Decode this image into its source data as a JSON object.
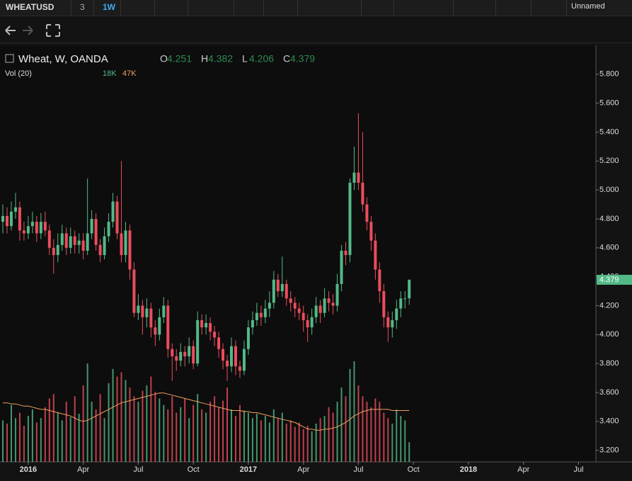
{
  "toolbar": {
    "symbol": "WHEATUSD",
    "compare": "3",
    "interval": "1W",
    "layout": "Unnamed"
  },
  "chart_data": {
    "type": "candlestick",
    "title": "Wheat, W, OANDA",
    "legend": {
      "labels": [
        "O",
        "H",
        "L",
        "C"
      ],
      "values": [
        4.251,
        4.382,
        4.206,
        4.379
      ]
    },
    "up_color": "#53b987",
    "down_color": "#eb4d5c",
    "open": [
      4.78,
      4.82,
      4.75,
      4.85,
      4.88,
      4.72,
      4.7,
      4.75,
      4.78,
      4.7,
      4.78,
      4.72,
      4.6,
      4.55,
      4.62,
      4.7,
      4.6,
      4.68,
      4.62,
      4.65,
      4.58,
      4.7,
      4.8,
      4.62,
      4.55,
      4.68,
      4.78,
      4.92,
      4.7,
      4.55,
      4.72,
      4.45,
      4.15,
      4.2,
      4.12,
      4.18,
      4.05,
      4.0,
      4.12,
      4.2,
      3.9,
      3.85,
      3.82,
      3.88,
      3.85,
      3.92,
      3.8,
      4.1,
      4.05,
      4.08,
      4.02,
      3.98,
      3.9,
      3.82,
      3.78,
      3.92,
      3.78,
      3.75,
      3.9,
      4.05,
      4.1,
      4.15,
      4.12,
      4.18,
      4.22,
      4.38,
      4.3,
      4.35,
      4.25,
      4.22,
      4.18,
      4.15,
      4.1,
      4.05,
      4.12,
      4.2,
      4.15,
      4.25,
      4.22,
      4.2,
      4.35,
      4.58,
      4.55,
      5.05,
      5.12,
      5.05,
      4.9,
      4.78,
      4.65,
      4.45,
      4.3,
      4.12,
      4.05,
      4.1,
      4.18,
      4.25,
      4.251
    ],
    "high": [
      4.9,
      4.88,
      4.92,
      4.98,
      4.92,
      4.78,
      4.82,
      4.85,
      4.82,
      4.84,
      4.85,
      4.76,
      4.66,
      4.7,
      4.76,
      4.74,
      4.74,
      4.72,
      4.7,
      4.7,
      5.08,
      4.86,
      4.84,
      4.66,
      4.74,
      4.84,
      4.98,
      4.96,
      5.2,
      4.78,
      4.76,
      4.5,
      4.28,
      4.24,
      4.25,
      4.22,
      4.1,
      4.18,
      4.26,
      4.24,
      3.94,
      3.9,
      3.94,
      3.92,
      3.98,
      3.96,
      4.16,
      4.14,
      4.14,
      4.12,
      4.06,
      4.02,
      3.94,
      3.86,
      3.98,
      3.96,
      3.82,
      3.96,
      4.1,
      4.16,
      4.22,
      4.2,
      4.24,
      4.3,
      4.44,
      4.42,
      4.54,
      4.38,
      4.3,
      4.26,
      4.22,
      4.2,
      4.14,
      4.18,
      4.26,
      4.24,
      4.32,
      4.3,
      4.28,
      4.42,
      4.62,
      4.64,
      5.08,
      5.3,
      5.53,
      5.4,
      4.95,
      4.82,
      4.7,
      4.5,
      4.35,
      4.16,
      4.16,
      4.24,
      4.3,
      4.3,
      4.382
    ],
    "low": [
      4.7,
      4.7,
      4.72,
      4.8,
      4.65,
      4.65,
      4.66,
      4.7,
      4.64,
      4.66,
      4.68,
      4.55,
      4.42,
      4.5,
      4.58,
      4.55,
      4.56,
      4.56,
      4.56,
      4.52,
      4.55,
      4.66,
      4.58,
      4.5,
      4.52,
      4.64,
      4.74,
      4.66,
      4.5,
      4.5,
      4.38,
      4.12,
      4.1,
      4.0,
      4.05,
      3.98,
      3.92,
      3.96,
      4.08,
      3.84,
      3.68,
      3.75,
      3.78,
      3.78,
      3.8,
      3.76,
      3.78,
      4.0,
      4.0,
      3.96,
      3.92,
      3.84,
      3.76,
      3.68,
      3.74,
      3.72,
      3.7,
      3.72,
      3.86,
      4.0,
      4.06,
      4.06,
      4.08,
      4.12,
      4.18,
      4.26,
      4.26,
      4.2,
      4.16,
      4.12,
      4.1,
      4.02,
      3.95,
      4.0,
      4.08,
      4.08,
      4.12,
      4.16,
      4.14,
      4.16,
      4.3,
      4.48,
      4.5,
      5.0,
      5.0,
      4.85,
      4.72,
      4.58,
      4.38,
      4.22,
      4.05,
      3.95,
      3.98,
      4.04,
      4.12,
      4.18,
      4.206
    ],
    "close": [
      4.82,
      4.75,
      4.85,
      4.88,
      4.72,
      4.7,
      4.75,
      4.78,
      4.7,
      4.78,
      4.72,
      4.6,
      4.55,
      4.62,
      4.7,
      4.6,
      4.68,
      4.62,
      4.65,
      4.58,
      4.7,
      4.8,
      4.62,
      4.55,
      4.68,
      4.78,
      4.92,
      4.7,
      4.55,
      4.72,
      4.45,
      4.15,
      4.2,
      4.12,
      4.18,
      4.05,
      4.0,
      4.12,
      4.2,
      3.9,
      3.85,
      3.82,
      3.88,
      3.85,
      3.92,
      3.8,
      4.1,
      4.05,
      4.08,
      4.02,
      3.98,
      3.9,
      3.82,
      3.78,
      3.92,
      3.78,
      3.75,
      3.9,
      4.05,
      4.1,
      4.15,
      4.12,
      4.18,
      4.22,
      4.38,
      4.3,
      4.35,
      4.25,
      4.22,
      4.18,
      4.15,
      4.1,
      4.05,
      4.12,
      4.2,
      4.15,
      4.25,
      4.22,
      4.2,
      4.35,
      4.58,
      4.55,
      5.05,
      5.12,
      5.05,
      4.9,
      4.78,
      4.65,
      4.45,
      4.3,
      4.12,
      4.05,
      4.1,
      4.18,
      4.25,
      4.25,
      4.379
    ],
    "ylim": [
      3.12,
      6.0
    ],
    "yticks": [
      {
        "value": 3.2,
        "label": "3.200"
      },
      {
        "value": 3.4,
        "label": "3.400"
      },
      {
        "value": 3.6,
        "label": "3.600"
      },
      {
        "value": 3.8,
        "label": "3.800"
      },
      {
        "value": 4.0,
        "label": "4.000"
      },
      {
        "value": 4.2,
        "label": "4.200"
      },
      {
        "value": 4.4,
        "label": "4.400"
      },
      {
        "value": 4.6,
        "label": "4.600"
      },
      {
        "value": 4.8,
        "label": "4.800"
      },
      {
        "value": 5.0,
        "label": "5.000"
      },
      {
        "value": 5.2,
        "label": "5.200"
      },
      {
        "value": 5.4,
        "label": "5.400"
      },
      {
        "value": 5.6,
        "label": "5.600"
      },
      {
        "value": 5.8,
        "label": "5.800"
      }
    ],
    "xlim": [
      -0.67,
      140.1
    ],
    "xticks": [
      {
        "value": 6,
        "label": "2016"
      },
      {
        "value": 19,
        "label": "Apr"
      },
      {
        "value": 32,
        "label": "Jul"
      },
      {
        "value": 45,
        "label": "Oct"
      },
      {
        "value": 58,
        "label": "2017"
      },
      {
        "value": 71,
        "label": "Apr"
      },
      {
        "value": 84,
        "label": "Jul"
      },
      {
        "value": 97,
        "label": "Oct"
      },
      {
        "value": 110,
        "label": "2018"
      },
      {
        "value": 123,
        "label": "Apr"
      },
      {
        "value": 136,
        "label": "Jul"
      }
    ],
    "volume": {
      "title": "Vol (20)",
      "ylim": [
        0,
        92000
      ],
      "ma_color": "#f0a060",
      "values": [
        38000,
        35000,
        52000,
        40000,
        45000,
        33000,
        42000,
        48000,
        36000,
        40000,
        50000,
        58000,
        62000,
        45000,
        38000,
        55000,
        41000,
        60000,
        44000,
        70000,
        90000,
        55000,
        48000,
        62000,
        40000,
        72000,
        85000,
        78000,
        82000,
        75000,
        68000,
        60000,
        55000,
        65000,
        70000,
        78000,
        64000,
        58000,
        52000,
        48000,
        60000,
        45000,
        50000,
        58000,
        40000,
        52000,
        62000,
        48000,
        45000,
        55000,
        60000,
        50000,
        56000,
        68000,
        48000,
        42000,
        52000,
        47000,
        45000,
        40000,
        44000,
        38000,
        42000,
        36000,
        48000,
        40000,
        45000,
        35000,
        38000,
        32000,
        36000,
        30000,
        33000,
        28000,
        35000,
        40000,
        42000,
        50000,
        45000,
        55000,
        68000,
        60000,
        85000,
        92000,
        70000,
        60000,
        55000,
        50000,
        58000,
        55000,
        45000,
        40000,
        35000,
        48000,
        42000,
        38000,
        18000
      ],
      "last_label": "18K",
      "ma": [
        54000,
        54000,
        53000,
        53000,
        52000,
        51000,
        51000,
        50000,
        49000,
        48000,
        48000,
        47000,
        46000,
        45000,
        44000,
        43000,
        42000,
        40000,
        38000,
        37000,
        38000,
        40000,
        42000,
        44000,
        46000,
        48000,
        50000,
        52000,
        54000,
        55000,
        56000,
        57000,
        58000,
        59000,
        60000,
        61000,
        62000,
        63000,
        63000,
        62000,
        61000,
        60000,
        59000,
        58000,
        57000,
        56000,
        55000,
        54000,
        53000,
        52000,
        51000,
        50000,
        49000,
        48000,
        47000,
        47000,
        47000,
        46000,
        46000,
        45000,
        45000,
        44000,
        43000,
        42000,
        41000,
        40000,
        39000,
        38000,
        37000,
        36000,
        34000,
        32000,
        30000,
        30000,
        29000,
        29000,
        30000,
        30000,
        31000,
        32000,
        34000,
        36000,
        39000,
        42000,
        44000,
        46000,
        47000,
        48000,
        48000,
        48000,
        48000,
        48000,
        47000,
        47000,
        47000,
        47000,
        47000
      ],
      "ma_last_label": "47K"
    }
  }
}
